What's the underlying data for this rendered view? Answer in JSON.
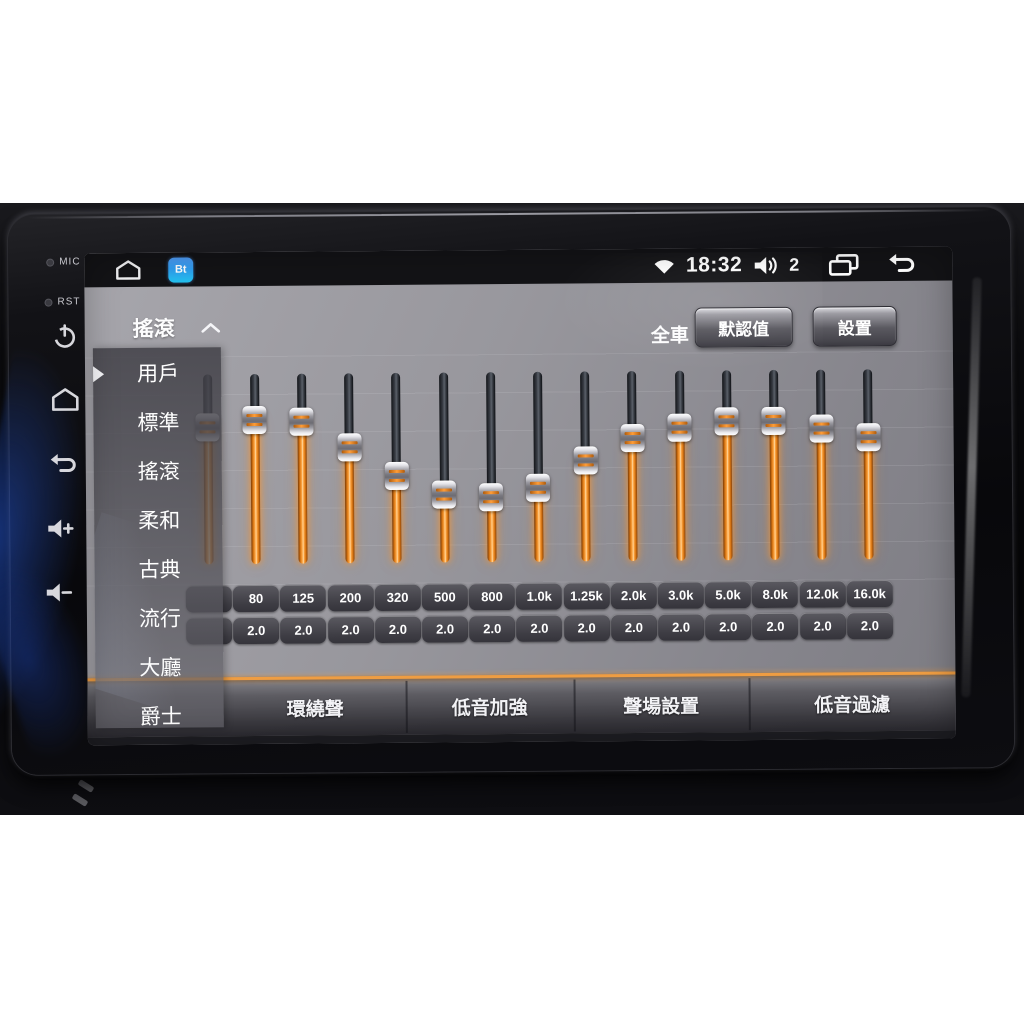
{
  "device": {
    "mic_label": "MIC",
    "rst_label": "RST"
  },
  "status_bar": {
    "time": "18:32",
    "volume_level": "2",
    "bluetooth_app_label": "Bt"
  },
  "eq_page": {
    "preset_selector": {
      "selected_label": "搖滾",
      "expanded": true,
      "options": [
        "用戶",
        "標準",
        "搖滾",
        "柔和",
        "古典",
        "流行",
        "大廳",
        "爵士"
      ],
      "active_option_index": 2
    },
    "zone_label": "全車",
    "default_button": "默認值",
    "settings_button": "設置",
    "bands": [
      {
        "freq": "",
        "value": "",
        "slider_pct": 28,
        "hidden_behind_menu": true
      },
      {
        "freq": "80",
        "value": "2.0",
        "slider_pct": 24
      },
      {
        "freq": "125",
        "value": "2.0",
        "slider_pct": 25
      },
      {
        "freq": "200",
        "value": "2.0",
        "slider_pct": 39
      },
      {
        "freq": "320",
        "value": "2.0",
        "slider_pct": 54
      },
      {
        "freq": "500",
        "value": "2.0",
        "slider_pct": 64
      },
      {
        "freq": "800",
        "value": "2.0",
        "slider_pct": 66
      },
      {
        "freq": "1.0k",
        "value": "2.0",
        "slider_pct": 61
      },
      {
        "freq": "1.25k",
        "value": "2.0",
        "slider_pct": 47
      },
      {
        "freq": "2.0k",
        "value": "2.0",
        "slider_pct": 35
      },
      {
        "freq": "3.0k",
        "value": "2.0",
        "slider_pct": 30
      },
      {
        "freq": "5.0k",
        "value": "2.0",
        "slider_pct": 27
      },
      {
        "freq": "8.0k",
        "value": "2.0",
        "slider_pct": 27
      },
      {
        "freq": "12.0k",
        "value": "2.0",
        "slider_pct": 31
      },
      {
        "freq": "16.0k",
        "value": "2.0",
        "slider_pct": 36
      }
    ],
    "tabs": [
      "環繞聲",
      "低音加強",
      "聲場設置",
      "低音過濾"
    ],
    "colors": {
      "accent_orange": "#ef9d42",
      "slider_orange": "#ff9d38",
      "screen_bg": "#908f96",
      "status_bar_bg": "#131316",
      "menu_panel_bg": "rgba(70,69,76,0.78)"
    }
  }
}
